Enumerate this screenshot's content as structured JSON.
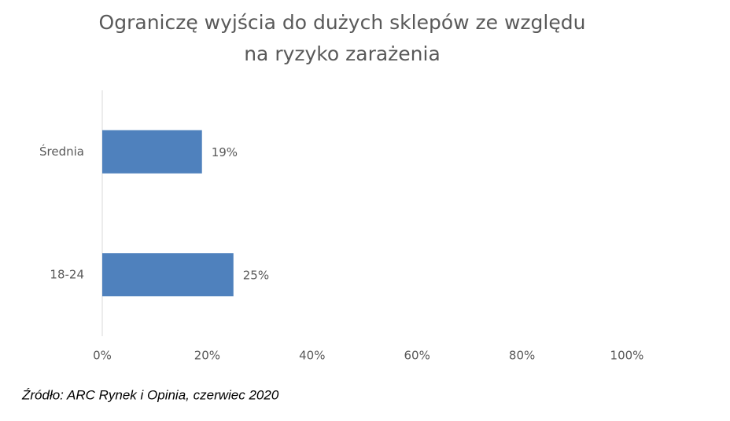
{
  "chart_data": {
    "type": "bar",
    "orientation": "horizontal",
    "title": [
      "Ograniczę wyjścia do dużych sklepów ze względu",
      "na ryzyko zarażenia"
    ],
    "categories": [
      "Średnia",
      "18-24"
    ],
    "values": [
      19,
      25
    ],
    "value_labels": [
      "19%",
      "25%"
    ],
    "color": "#4f81bd",
    "xlim": [
      0,
      100
    ],
    "xticks": [
      {
        "value": 0,
        "label": "0%"
      },
      {
        "value": 20,
        "label": "20%"
      },
      {
        "value": 40,
        "label": "40%"
      },
      {
        "value": 60,
        "label": "60%"
      },
      {
        "value": 80,
        "label": "80%"
      },
      {
        "value": 100,
        "label": "100%"
      }
    ],
    "grid": false,
    "source": "Źródło: ARC Rynek i Opinia, czerwiec 2020"
  }
}
